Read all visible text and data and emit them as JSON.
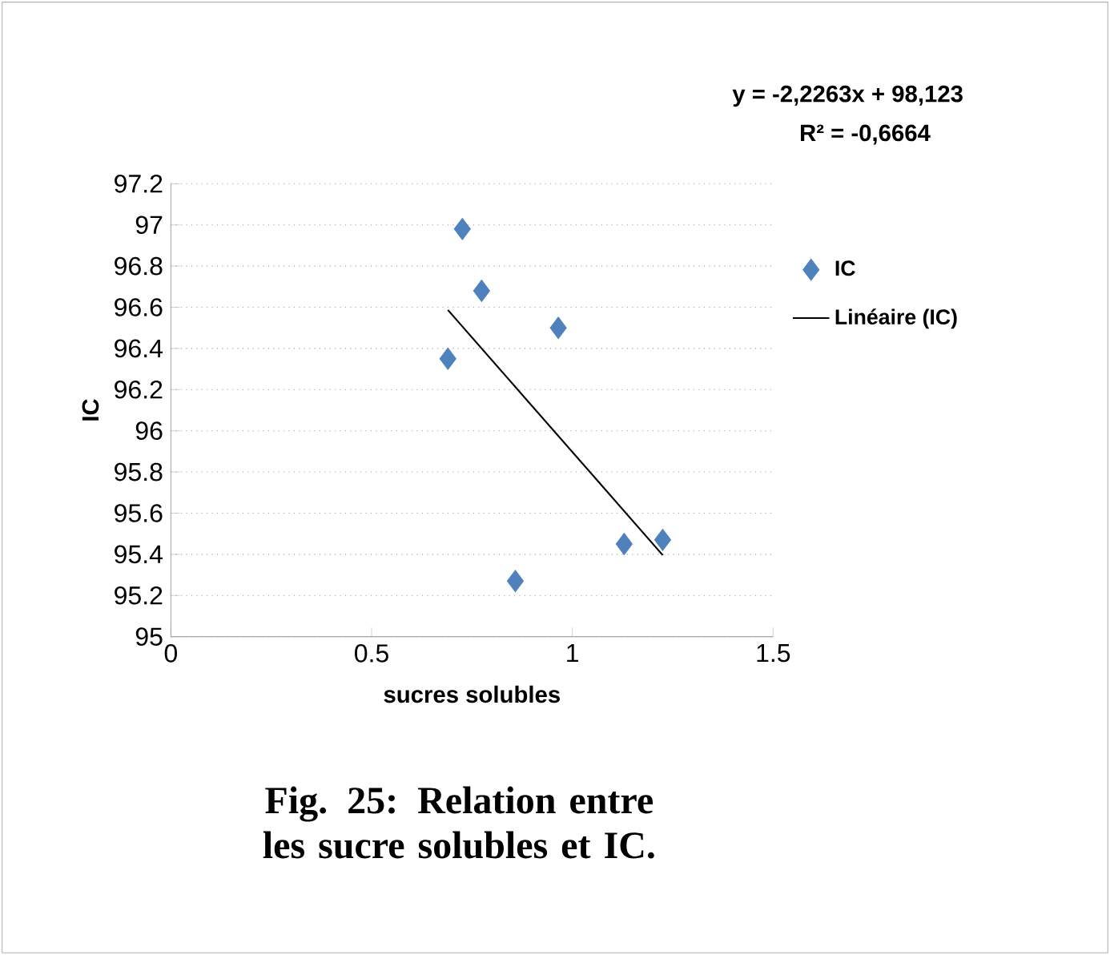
{
  "chart_data": {
    "type": "scatter",
    "xlabel": "sucres solubles",
    "ylabel": "IC",
    "xlim": [
      0,
      1.5
    ],
    "xticks": [
      0,
      0.5,
      1,
      1.5
    ],
    "ylim": [
      95,
      97.2
    ],
    "yticks": [
      95,
      95.2,
      95.4,
      95.6,
      95.8,
      96,
      96.2,
      96.4,
      96.6,
      96.8,
      97,
      97.2
    ],
    "grid": "y",
    "legend": "right",
    "series": [
      {
        "name": "IC",
        "marker": "diamond",
        "color": "#4f81bd",
        "x": [
          0.726,
          0.774,
          0.69,
          0.965,
          0.858,
          1.129,
          1.225
        ],
        "values": [
          96.98,
          96.68,
          96.35,
          96.5,
          95.27,
          95.45,
          95.47
        ]
      },
      {
        "name": "Linéaire (IC)",
        "type": "line",
        "marker": "none",
        "color": "#000000",
        "x": [
          0.69,
          1.225
        ],
        "values": [
          96.587,
          95.396
        ]
      }
    ],
    "annotations": [
      "y = -2,2263x + 98,123",
      "R² = -0,6664",
      "Fig. 25: Relation entre les sucre solubles et IC."
    ]
  }
}
